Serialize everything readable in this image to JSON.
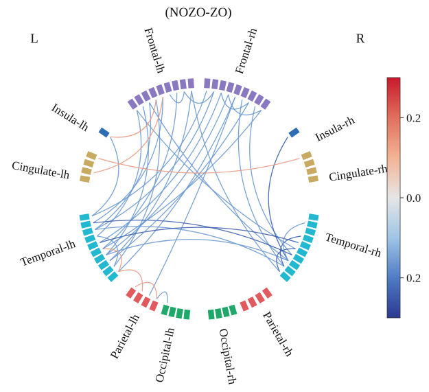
{
  "title": "(NOZO-ZO)",
  "hemisphere_left": "L",
  "hemisphere_right": "R",
  "regions": [
    {
      "key": "frontal_lh",
      "label": "Frontal-lh",
      "color": "#8a78c0",
      "blocks": 9
    },
    {
      "key": "insula_lh",
      "label": "Insula-lh",
      "color": "#2e6db4",
      "blocks": 1
    },
    {
      "key": "cingulate_lh",
      "label": "Cingulate-lh",
      "color": "#c9aa62",
      "blocks": 4
    },
    {
      "key": "temporal_lh",
      "label": "Temporal-lh",
      "color": "#22b8cf",
      "blocks": 10
    },
    {
      "key": "parietal_lh",
      "label": "Parietal-lh",
      "color": "#e05a5e",
      "blocks": 4
    },
    {
      "key": "occipital_lh",
      "label": "Occipital-lh",
      "color": "#1fa86a",
      "blocks": 4
    },
    {
      "key": "occipital_rh",
      "label": "Occipital-rh",
      "color": "#1fa86a",
      "blocks": 4
    },
    {
      "key": "parietal_rh",
      "label": "Parietal-rh",
      "color": "#e05a5e",
      "blocks": 4
    },
    {
      "key": "temporal_rh",
      "label": "Temporal-rh",
      "color": "#22b8cf",
      "blocks": 10
    },
    {
      "key": "cingulate_rh",
      "label": "Cingulate-rh",
      "color": "#c9aa62",
      "blocks": 4
    },
    {
      "key": "insula_rh",
      "label": "Insula-rh",
      "color": "#2e6db4",
      "blocks": 1
    },
    {
      "key": "frontal_rh",
      "label": "Frontal-rh",
      "color": "#8a78c0",
      "blocks": 9
    }
  ],
  "colorbar": {
    "stops": [
      "#2b3990",
      "#4f7cc5",
      "#9fc5e6",
      "#e6e6e6",
      "#f3b395",
      "#e0705d",
      "#c8192b"
    ],
    "ticks": [
      {
        "label": "0.2",
        "value": 0.2
      },
      {
        "label": "0.0",
        "value": 0.0
      },
      {
        "label": "0.2",
        "value": -0.2
      }
    ],
    "range": [
      -0.3,
      0.3
    ]
  },
  "link_colors": {
    "negative": "#6a99d2",
    "negative_strong": "#3a5fae",
    "positive": "#ec9a82"
  },
  "connections": [
    {
      "from": "frontal_lh",
      "i": 0,
      "to": "temporal_lh",
      "j": 3,
      "sign": "neg"
    },
    {
      "from": "frontal_lh",
      "i": 1,
      "to": "temporal_lh",
      "j": 6,
      "sign": "neg"
    },
    {
      "from": "frontal_lh",
      "i": 2,
      "to": "temporal_lh",
      "j": 2,
      "sign": "neg"
    },
    {
      "from": "frontal_lh",
      "i": 3,
      "to": "temporal_lh",
      "j": 8,
      "sign": "neg"
    },
    {
      "from": "frontal_lh",
      "i": 4,
      "to": "temporal_lh",
      "j": 1,
      "sign": "neg"
    },
    {
      "from": "frontal_lh",
      "i": 6,
      "to": "temporal_lh",
      "j": 5,
      "sign": "neg"
    },
    {
      "from": "frontal_lh",
      "i": 8,
      "to": "temporal_lh",
      "j": 7,
      "sign": "neg"
    },
    {
      "from": "frontal_lh",
      "i": 5,
      "to": "frontal_lh",
      "j": 7,
      "sign": "neg"
    },
    {
      "from": "frontal_lh",
      "i": 7,
      "to": "frontal_rh",
      "j": 1,
      "sign": "neg"
    },
    {
      "from": "frontal_lh",
      "i": 2,
      "to": "temporal_rh",
      "j": 2,
      "sign": "neg"
    },
    {
      "from": "frontal_lh",
      "i": 0,
      "to": "temporal_rh",
      "j": 4,
      "sign": "neg"
    },
    {
      "from": "frontal_lh",
      "i": 8,
      "to": "temporal_rh",
      "j": 0,
      "sign": "neg"
    },
    {
      "from": "frontal_rh",
      "i": 0,
      "to": "temporal_lh",
      "j": 0,
      "sign": "neg"
    },
    {
      "from": "frontal_rh",
      "i": 1,
      "to": "temporal_lh",
      "j": 2,
      "sign": "neg"
    },
    {
      "from": "frontal_rh",
      "i": 2,
      "to": "temporal_lh",
      "j": 4,
      "sign": "neg"
    },
    {
      "from": "frontal_rh",
      "i": 3,
      "to": "temporal_lh",
      "j": 6,
      "sign": "neg"
    },
    {
      "from": "frontal_rh",
      "i": 4,
      "to": "temporal_lh",
      "j": 9,
      "sign": "neg"
    },
    {
      "from": "frontal_rh",
      "i": 2,
      "to": "frontal_rh",
      "j": 6,
      "sign": "neg"
    },
    {
      "from": "frontal_rh",
      "i": 3,
      "to": "frontal_rh",
      "j": 8,
      "sign": "neg"
    },
    {
      "from": "frontal_rh",
      "i": 5,
      "to": "temporal_rh",
      "j": 1,
      "sign": "neg"
    },
    {
      "from": "frontal_rh",
      "i": 7,
      "to": "temporal_rh",
      "j": 3,
      "sign": "neg"
    },
    {
      "from": "frontal_rh",
      "i": 4,
      "to": "parietal_lh",
      "j": 2,
      "sign": "neg"
    },
    {
      "from": "insula_rh",
      "i": 0,
      "to": "temporal_rh",
      "j": 2,
      "sign": "negs"
    },
    {
      "from": "insula_lh",
      "i": 0,
      "to": "temporal_lh",
      "j": 0,
      "sign": "neg"
    },
    {
      "from": "frontal_lh",
      "i": 3,
      "to": "insula_lh",
      "j": 0,
      "sign": "pos"
    },
    {
      "from": "cingulate_lh",
      "i": 1,
      "to": "frontal_lh",
      "j": 4,
      "sign": "pos"
    },
    {
      "from": "cingulate_lh",
      "i": 3,
      "to": "cingulate_rh",
      "j": 3,
      "sign": "pos"
    },
    {
      "from": "temporal_lh",
      "i": 2,
      "to": "temporal_rh",
      "j": 1,
      "sign": "neg"
    },
    {
      "from": "temporal_lh",
      "i": 4,
      "to": "temporal_rh",
      "j": 5,
      "sign": "negs"
    },
    {
      "from": "temporal_lh",
      "i": 1,
      "to": "temporal_rh",
      "j": 3,
      "sign": "negs"
    },
    {
      "from": "temporal_lh",
      "i": 6,
      "to": "temporal_rh",
      "j": 2,
      "sign": "neg"
    },
    {
      "from": "temporal_lh",
      "i": 3,
      "to": "temporal_lh",
      "j": 8,
      "sign": "neg"
    },
    {
      "from": "temporal_lh",
      "i": 5,
      "to": "temporal_lh",
      "j": 9,
      "sign": "pos"
    },
    {
      "from": "temporal_rh",
      "i": 0,
      "to": "temporal_rh",
      "j": 4,
      "sign": "negs"
    },
    {
      "from": "temporal_rh",
      "i": 1,
      "to": "temporal_rh",
      "j": 6,
      "sign": "negs"
    },
    {
      "from": "temporal_rh",
      "i": 2,
      "to": "temporal_rh",
      "j": 8,
      "sign": "neg"
    },
    {
      "from": "parietal_lh",
      "i": 0,
      "to": "parietal_lh",
      "j": 3,
      "sign": "pos"
    },
    {
      "from": "parietal_lh",
      "i": 1,
      "to": "temporal_lh",
      "j": 9,
      "sign": "pos"
    },
    {
      "from": "parietal_lh",
      "i": 3,
      "to": "occipital_lh",
      "j": 0,
      "sign": "neg"
    },
    {
      "from": "temporal_lh",
      "i": 7,
      "to": "frontal_rh",
      "j": 6,
      "sign": "neg"
    },
    {
      "from": "temporal_lh",
      "i": 5,
      "to": "frontal_rh",
      "j": 8,
      "sign": "neg"
    }
  ]
}
